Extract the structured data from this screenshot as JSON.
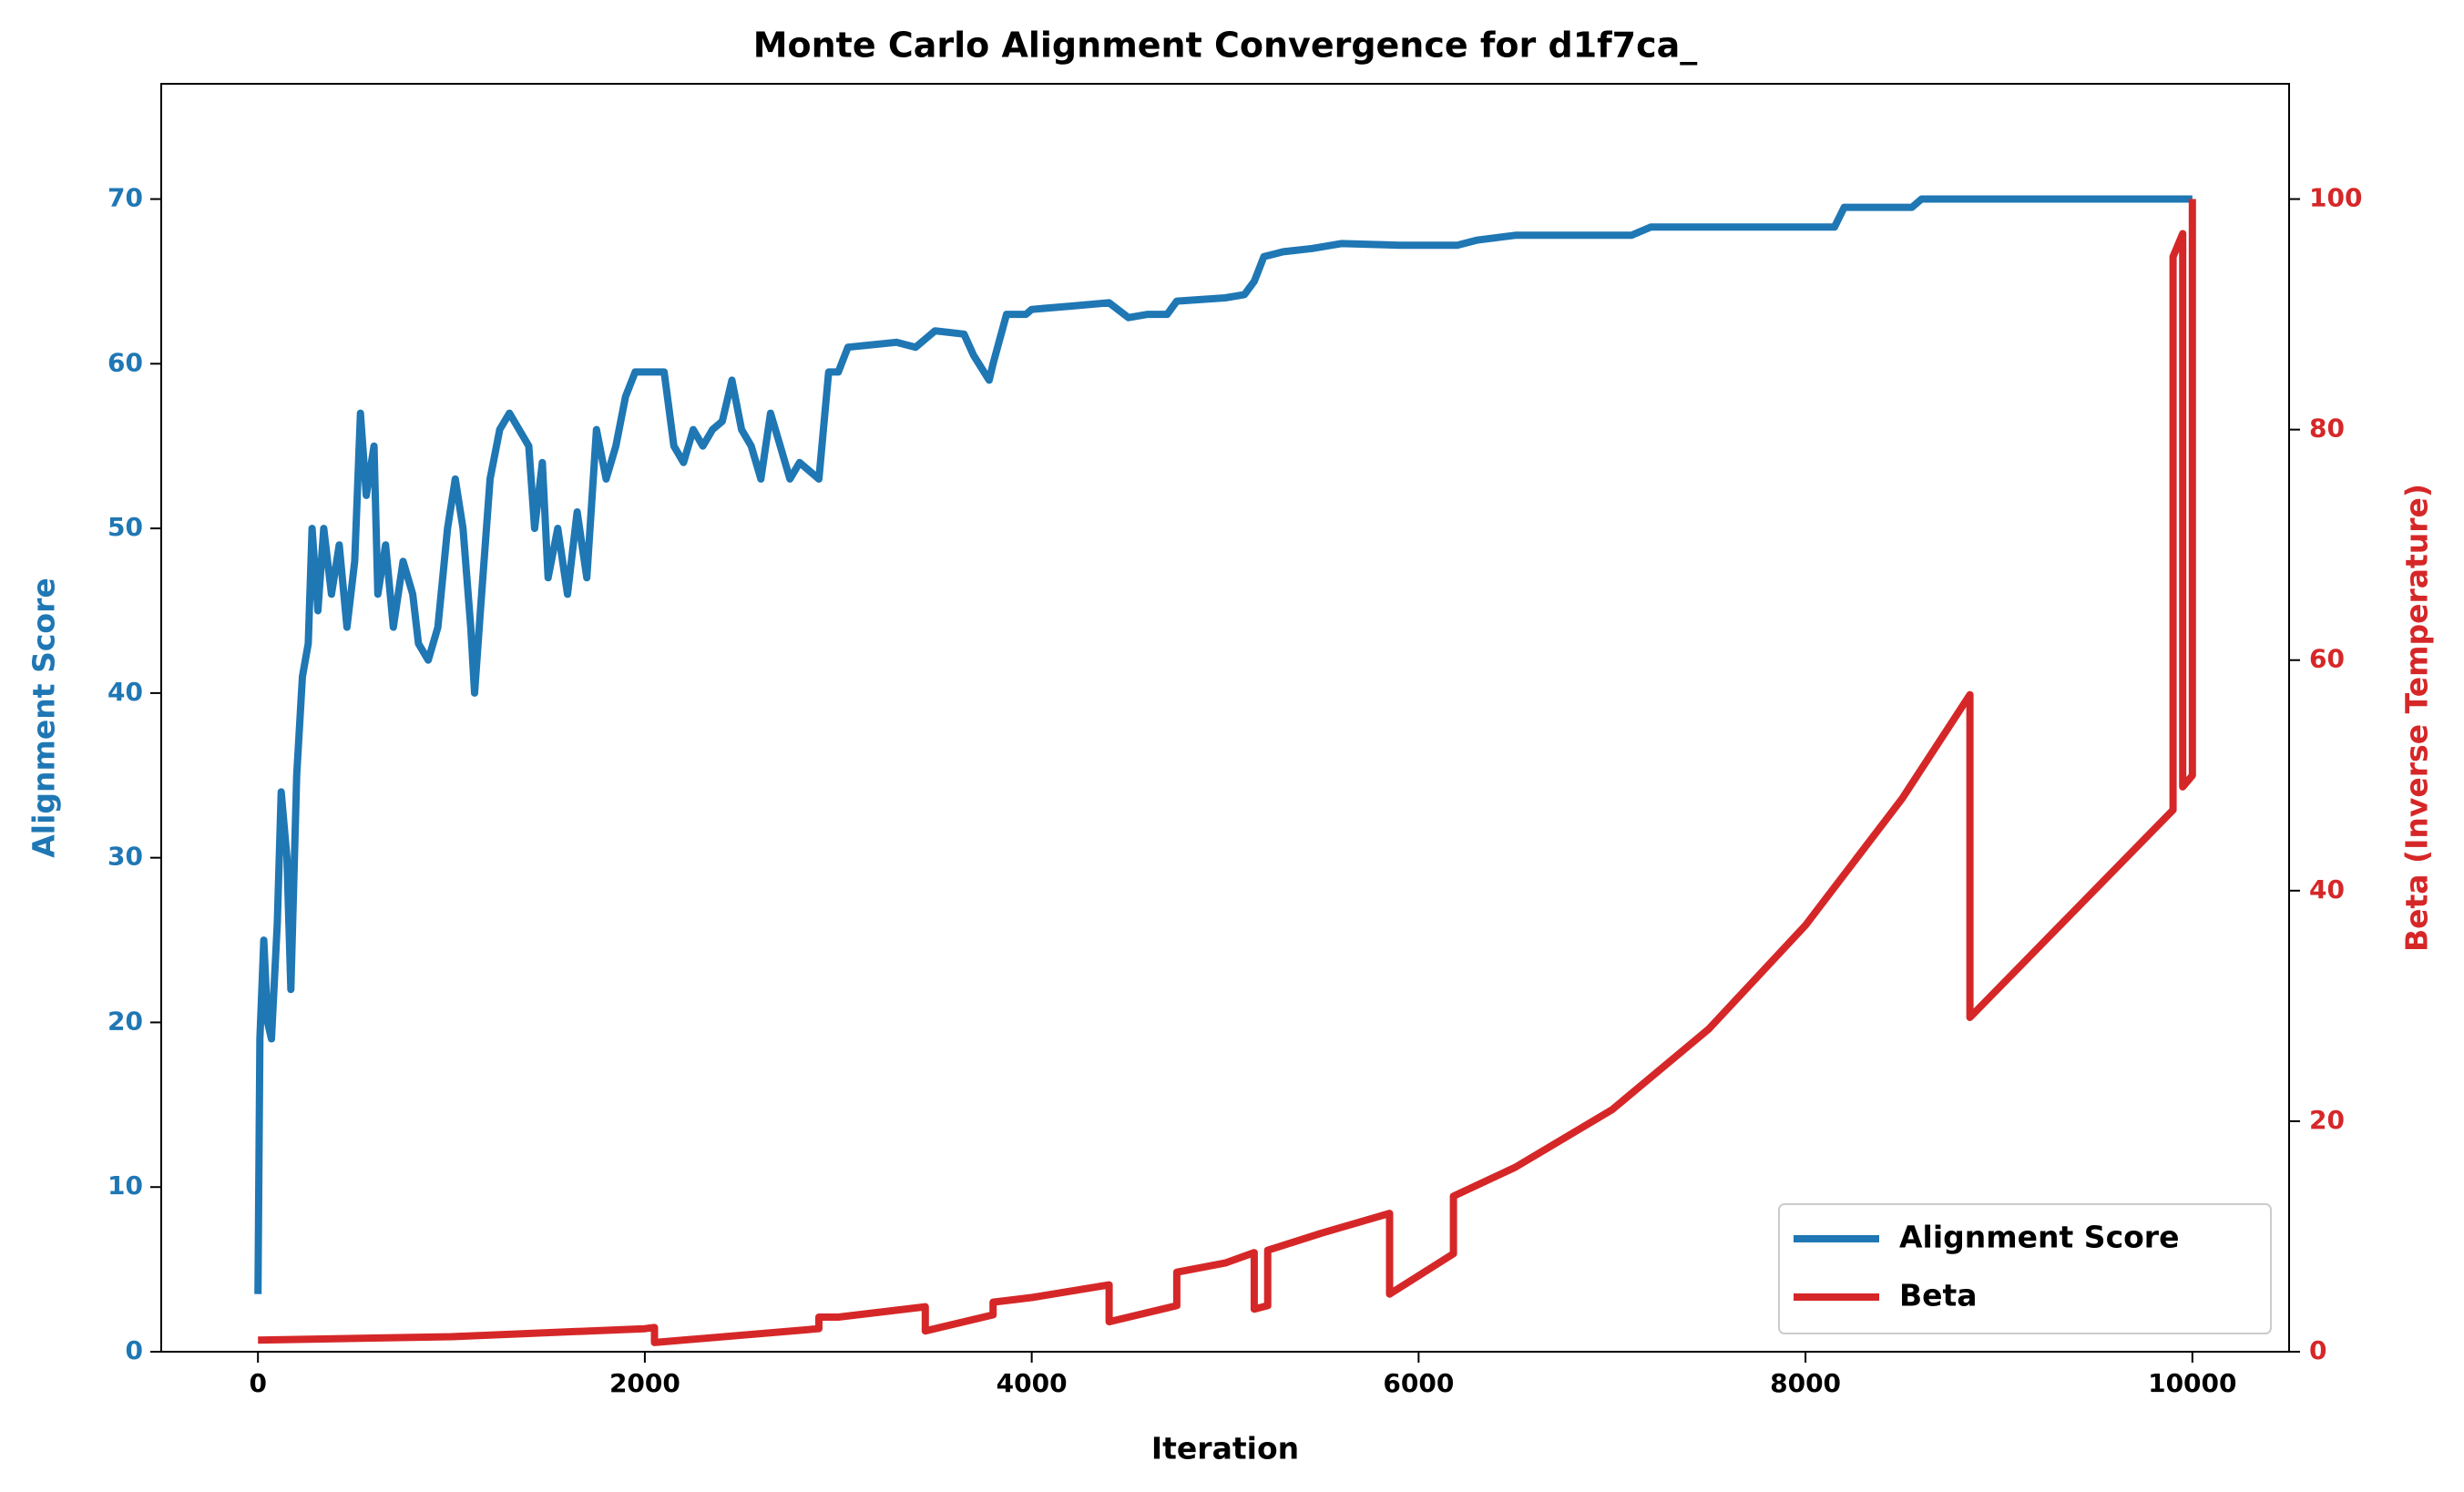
{
  "chart_data": {
    "type": "line",
    "title": "Monte Carlo Alignment Convergence for d1f7ca_",
    "x_label": "Iteration",
    "y_label": "Alignment Score",
    "y2_label": "Beta (Inverse Temperature)",
    "xlim": [
      -500,
      10500
    ],
    "xticks": [
      0,
      2000,
      4000,
      6000,
      8000,
      10000
    ],
    "ylim": [
      0,
      77
    ],
    "yticks": [
      0,
      10,
      20,
      30,
      40,
      50,
      60,
      70
    ],
    "y2lim": [
      0,
      110
    ],
    "y2ticks": [
      0,
      20,
      40,
      60,
      80,
      100
    ],
    "legend": "lower right",
    "series": [
      {
        "name": "Alignment Score",
        "color": "#1f77b4",
        "x": [
          0,
          10,
          30,
          50,
          70,
          100,
          120,
          150,
          170,
          200,
          230,
          260,
          280,
          310,
          340,
          380,
          420,
          460,
          500,
          530,
          560,
          600,
          620,
          660,
          700,
          750,
          800,
          830,
          880,
          930,
          980,
          1020,
          1060,
          1100,
          1120,
          1150,
          1200,
          1250,
          1300,
          1350,
          1400,
          1430,
          1470,
          1500,
          1550,
          1600,
          1650,
          1700,
          1750,
          1800,
          1850,
          1900,
          1950,
          2100,
          2150,
          2200,
          2250,
          2300,
          2350,
          2400,
          2450,
          2500,
          2550,
          2600,
          2650,
          2700,
          2750,
          2800,
          2900,
          2950,
          3000,
          3050,
          3300,
          3400,
          3500,
          3650,
          3700,
          3780,
          3800,
          3870,
          3970,
          4000,
          4100,
          4200,
          4400,
          4500,
          4600,
          4700,
          4750,
          5000,
          5100,
          5150,
          5200,
          5300,
          5450,
          5600,
          5900,
          6200,
          6300,
          6500,
          7100,
          7200,
          8150,
          8200,
          8550,
          8600,
          10000
        ],
        "values": [
          3.5,
          19,
          25,
          20,
          19,
          26,
          34,
          30,
          22,
          35,
          41,
          43,
          50,
          45,
          50,
          46,
          49,
          44,
          48,
          57,
          52,
          55,
          46,
          49,
          44,
          48,
          46,
          43,
          42,
          44,
          50,
          53,
          50,
          44,
          40,
          45,
          53,
          56,
          57,
          56,
          55,
          50,
          54,
          47,
          50,
          46,
          51,
          47,
          56,
          53,
          55,
          58,
          59.5,
          59.5,
          55,
          54,
          56,
          55,
          56,
          56.5,
          59,
          56,
          55,
          53,
          57,
          55,
          53,
          54,
          53,
          59.5,
          59.5,
          61,
          61.3,
          61,
          62,
          61.8,
          60.5,
          59,
          60,
          63,
          63,
          63.3,
          63.4,
          63.5,
          63.7,
          62.8,
          63,
          63,
          63.8,
          64,
          64.2,
          65,
          66.5,
          66.8,
          67,
          67.3,
          67.2,
          67.2,
          67.5,
          67.8,
          67.8,
          68.3,
          68.3,
          69.5,
          69.5,
          70,
          70
        ]
      },
      {
        "name": "Beta",
        "color": "#d62728",
        "axis": "y2",
        "x": [
          0,
          1000,
          2000,
          2050,
          2050,
          2900,
          2900,
          3000,
          3450,
          3450,
          3800,
          3800,
          4000,
          4400,
          4400,
          4750,
          4750,
          5000,
          5150,
          5150,
          5220,
          5220,
          5500,
          5850,
          5850,
          6180,
          6180,
          6500,
          7000,
          7500,
          8000,
          8500,
          8850,
          8850,
          9900,
          9900,
          9950,
          9950,
          10000,
          10000
        ],
        "values": [
          1,
          1.3,
          2,
          2.1,
          0.8,
          2,
          3,
          3,
          3.9,
          1.8,
          3.2,
          4.3,
          4.7,
          5.8,
          2.6,
          4,
          6.9,
          7.7,
          8.6,
          3.7,
          4,
          8.8,
          10.3,
          12,
          5,
          8.5,
          13.5,
          16,
          21,
          28,
          37,
          48,
          57,
          29,
          47,
          95,
          97,
          49,
          50,
          100
        ]
      }
    ]
  }
}
